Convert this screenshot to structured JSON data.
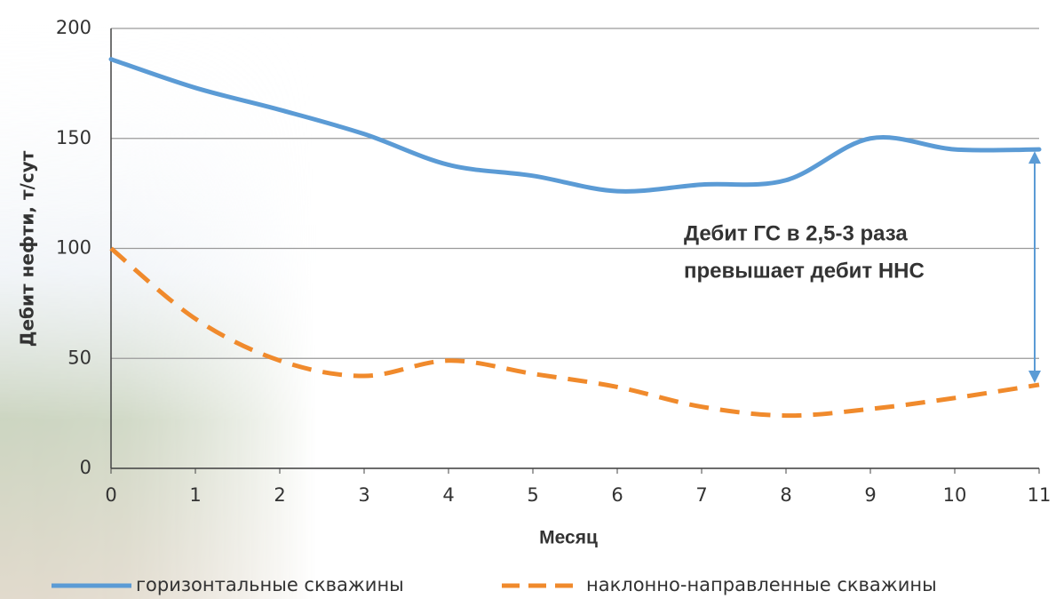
{
  "chart_data": {
    "type": "line",
    "x": [
      0,
      1,
      2,
      3,
      4,
      5,
      6,
      7,
      8,
      9,
      10,
      11
    ],
    "xlim": [
      0,
      11
    ],
    "xticks": [
      0,
      1,
      2,
      3,
      4,
      5,
      6,
      7,
      8,
      9,
      10,
      11
    ],
    "ylim": [
      0,
      200
    ],
    "yticks": [
      0,
      50,
      100,
      150,
      200
    ],
    "xlabel": "Месяц",
    "ylabel": "Дебит нефти, т/сут",
    "grid": true,
    "series": [
      {
        "name": "горизонтальные скважины",
        "color": "#5b9bd5",
        "dash": false,
        "values": [
          186,
          173,
          163,
          152,
          138,
          133,
          126,
          129,
          131,
          150,
          145,
          145
        ]
      },
      {
        "name": "наклонно-направленные скважины",
        "color": "#f08a2c",
        "dash": true,
        "values": [
          100,
          68,
          49,
          42,
          49,
          43,
          37,
          28,
          24,
          27,
          32,
          38
        ]
      }
    ],
    "annotation": [
      "Дебит ГС в 2,5-3 раза",
      "превышает дебит ННС"
    ]
  }
}
